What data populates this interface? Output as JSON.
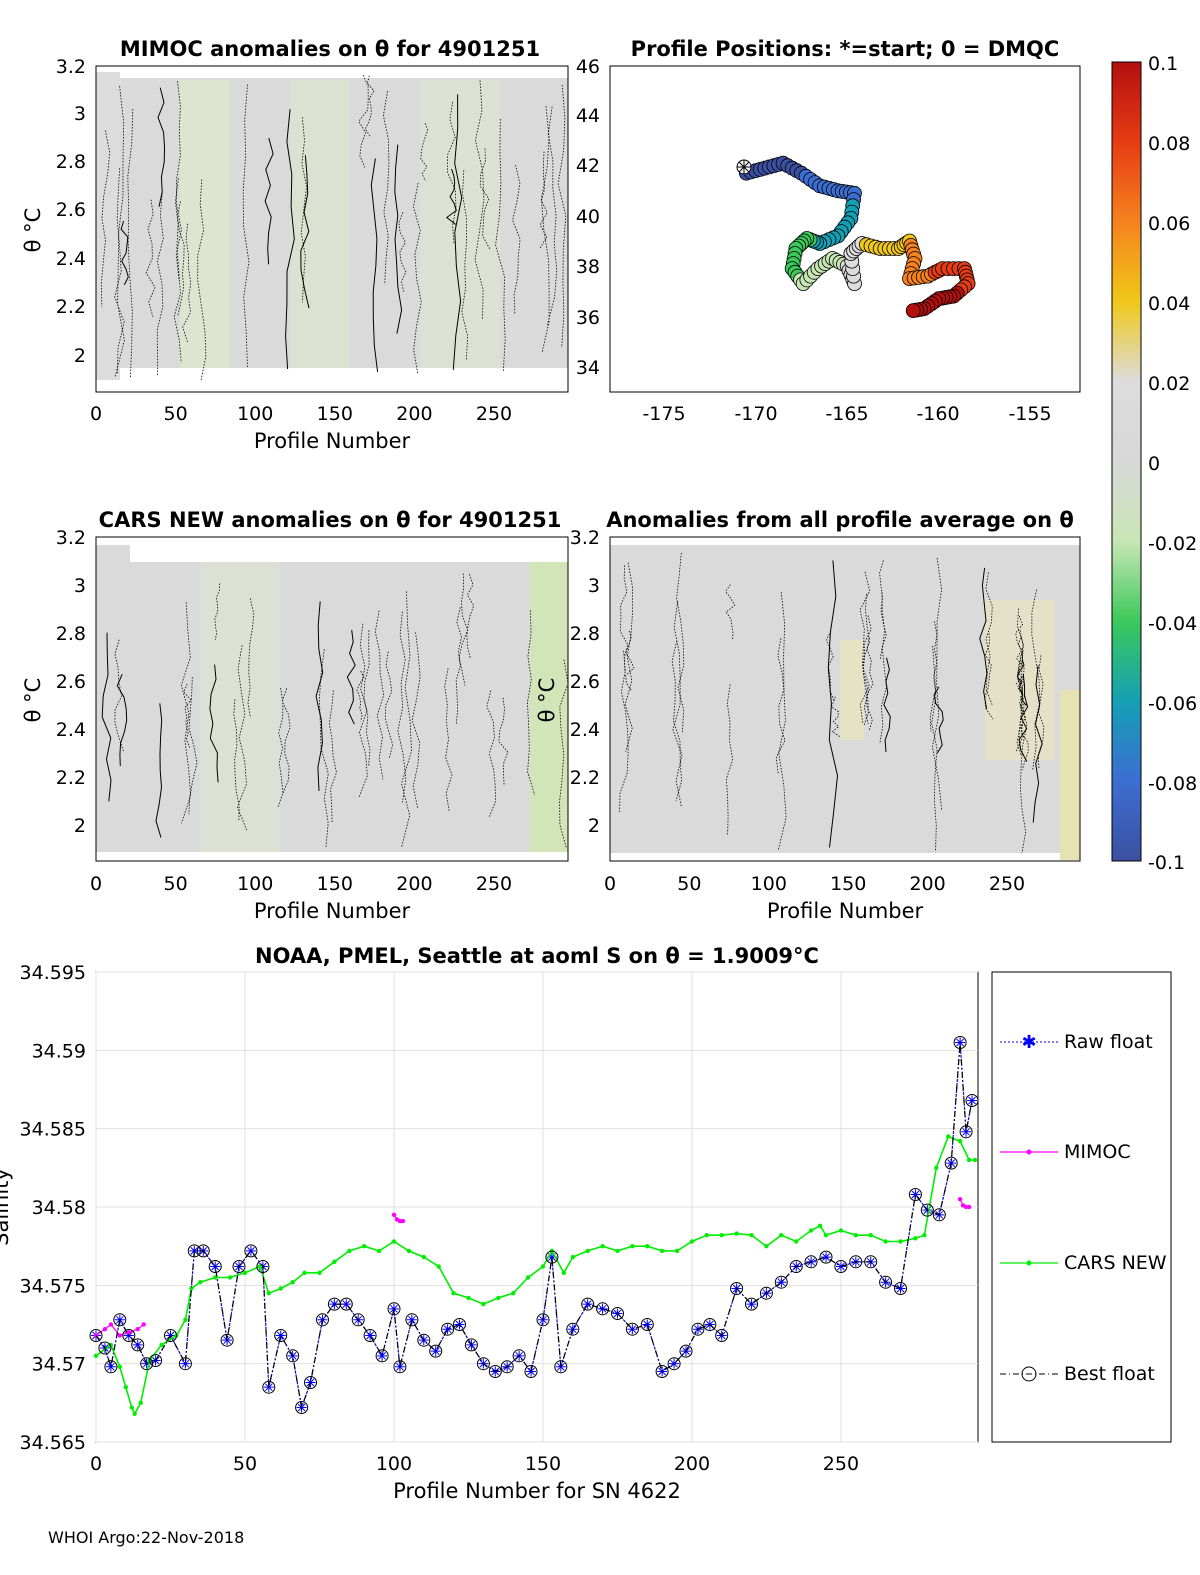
{
  "footer": "WHOI Argo:22-Nov-2018",
  "panels": {
    "mimoc": {
      "title": "MIMOC anomalies on θ  for 4901251",
      "xlabel": "Profile Number",
      "ylabel": "θ °C",
      "xticks": [
        "0",
        "50",
        "100",
        "150",
        "200",
        "250"
      ],
      "yticks": [
        "2",
        "2.2",
        "2.4",
        "2.6",
        "2.8",
        "3",
        "3.2"
      ]
    },
    "positions": {
      "title": "Profile Positions: *=start; 0 = DMQC",
      "xticks": [
        "-175",
        "-170",
        "-165",
        "-160",
        "-155"
      ],
      "yticks": [
        "34",
        "36",
        "38",
        "40",
        "42",
        "44",
        "46"
      ]
    },
    "cars": {
      "title": "CARS NEW anomalies on θ for 4901251",
      "xlabel": "Profile Number",
      "ylabel": "θ °C",
      "xticks": [
        "0",
        "50",
        "100",
        "150",
        "200",
        "250"
      ],
      "yticks": [
        "2",
        "2.2",
        "2.4",
        "2.6",
        "2.8",
        "3",
        "3.2"
      ]
    },
    "avg": {
      "title": "Anomalies from all profile average on θ",
      "xlabel": "Profile Number",
      "ylabel": "θ °C",
      "xticks": [
        "0",
        "50",
        "100",
        "150",
        "200",
        "250"
      ],
      "yticks": [
        "2",
        "2.2",
        "2.4",
        "2.6",
        "2.8",
        "3",
        "3.2"
      ]
    }
  },
  "colorbar": {
    "ticks": [
      "0.1",
      "0.08",
      "0.06",
      "0.04",
      "0.02",
      "0",
      "-0.02",
      "-0.04",
      "-0.06",
      "-0.08",
      "-0.1"
    ],
    "colors": [
      "#b40f0f",
      "#e63c14",
      "#f5821e",
      "#f0c819",
      "#dcdcdc",
      "#c8e6b4",
      "#3cc85a",
      "#14a0b4",
      "#3c6ed2",
      "#3c50a0"
    ]
  },
  "chart_data": {
    "type": "line",
    "title": "NOAA, PMEL, Seattle at aoml S on θ = 1.9009°C",
    "xlabel": "Profile Number for SN 4622",
    "ylabel": "Salinity",
    "xlim": [
      0,
      296
    ],
    "ylim": [
      34.565,
      34.595
    ],
    "xticks": [
      "0",
      "50",
      "100",
      "150",
      "200",
      "250"
    ],
    "yticks": [
      "34.565",
      "34.57",
      "34.575",
      "34.58",
      "34.585",
      "34.59",
      "34.595"
    ],
    "grid": true,
    "legend_position": "right",
    "series": [
      {
        "name": "Raw float",
        "color": "#0000ff",
        "x": [
          0,
          3,
          5,
          8,
          11,
          14,
          17,
          20,
          25,
          30,
          33,
          36,
          40,
          44,
          48,
          52,
          56,
          58,
          62,
          66,
          69,
          72,
          76,
          80,
          84,
          88,
          92,
          96,
          100,
          102,
          106,
          110,
          114,
          118,
          122,
          126,
          130,
          134,
          138,
          142,
          146,
          150,
          153,
          156,
          160,
          165,
          170,
          175,
          180,
          185,
          190,
          194,
          198,
          202,
          206,
          210,
          215,
          220,
          225,
          230,
          235,
          240,
          245,
          250,
          255,
          260,
          265,
          270,
          275,
          279,
          283,
          287,
          290,
          292,
          294
        ],
        "y": [
          34.5718,
          34.571,
          34.5698,
          34.5728,
          34.5718,
          34.5712,
          34.57,
          34.5702,
          34.5718,
          34.57,
          34.5772,
          34.5772,
          34.5762,
          34.5715,
          34.5762,
          34.5772,
          34.5762,
          34.5685,
          34.5718,
          34.5705,
          34.5672,
          34.5688,
          34.5728,
          34.5738,
          34.5738,
          34.5728,
          34.5718,
          34.5705,
          34.5735,
          34.5698,
          34.5728,
          34.5715,
          34.5708,
          34.5722,
          34.5725,
          34.5712,
          34.57,
          34.5695,
          34.5698,
          34.5705,
          34.5695,
          34.5728,
          34.5768,
          34.5698,
          34.5722,
          34.5738,
          34.5735,
          34.5732,
          34.5722,
          34.5725,
          34.5695,
          34.57,
          34.5708,
          34.5722,
          34.5725,
          34.5718,
          34.5748,
          34.5738,
          34.5745,
          34.5752,
          34.5762,
          34.5765,
          34.5768,
          34.5762,
          34.5765,
          34.5765,
          34.5752,
          34.5748,
          34.5808,
          34.5798,
          34.5795,
          34.5828,
          34.5905,
          34.5848,
          34.5868
        ]
      },
      {
        "name": "MIMOC",
        "color": "#ff00ff",
        "x": [
          0,
          3,
          5,
          8,
          11,
          14,
          16,
          100,
          101,
          102,
          103,
          290,
          291,
          292,
          293
        ],
        "y": [
          34.5718,
          34.5722,
          34.5725,
          34.5718,
          34.572,
          34.5722,
          34.5725,
          34.5795,
          34.5792,
          34.5791,
          34.5791,
          34.5805,
          34.5801,
          34.58,
          34.58
        ]
      },
      {
        "name": "CARS NEW",
        "color": "#00ee00",
        "x": [
          0,
          5,
          8,
          10,
          12,
          13,
          15,
          18,
          22,
          27,
          30,
          32,
          35,
          40,
          45,
          50,
          55,
          58,
          62,
          66,
          70,
          75,
          80,
          85,
          90,
          95,
          100,
          105,
          110,
          115,
          120,
          125,
          130,
          135,
          140,
          145,
          150,
          153,
          157,
          160,
          165,
          170,
          175,
          180,
          185,
          190,
          195,
          200,
          205,
          210,
          215,
          220,
          225,
          230,
          235,
          240,
          243,
          245,
          250,
          255,
          260,
          265,
          270,
          275,
          278,
          282,
          286,
          290,
          293,
          295
        ],
        "y": [
          34.5705,
          34.5712,
          34.5698,
          34.5685,
          34.5672,
          34.5668,
          34.5675,
          34.5702,
          34.5712,
          34.5718,
          34.5728,
          34.5748,
          34.5752,
          34.5755,
          34.5755,
          34.5758,
          34.5762,
          34.5745,
          34.5748,
          34.5752,
          34.5758,
          34.5758,
          34.5765,
          34.5772,
          34.5775,
          34.5772,
          34.5778,
          34.5772,
          34.5768,
          34.5762,
          34.5745,
          34.5742,
          34.5738,
          34.5742,
          34.5745,
          34.5755,
          34.5762,
          34.5772,
          34.5758,
          34.5768,
          34.5772,
          34.5775,
          34.5772,
          34.5775,
          34.5775,
          34.5772,
          34.5772,
          34.5778,
          34.5782,
          34.5782,
          34.5783,
          34.5782,
          34.5775,
          34.5782,
          34.5778,
          34.5785,
          34.5788,
          34.5782,
          34.5785,
          34.5782,
          34.5782,
          34.5778,
          34.5778,
          34.578,
          34.5782,
          34.5825,
          34.5845,
          34.5842,
          34.583,
          34.583
        ]
      },
      {
        "name": "Best float",
        "color": "#000000",
        "x": [
          0,
          3,
          5,
          8,
          11,
          14,
          17,
          20,
          25,
          30,
          33,
          36,
          40,
          44,
          48,
          52,
          56,
          58,
          62,
          66,
          69,
          72,
          76,
          80,
          84,
          88,
          92,
          96,
          100,
          102,
          106,
          110,
          114,
          118,
          122,
          126,
          130,
          134,
          138,
          142,
          146,
          150,
          153,
          156,
          160,
          165,
          170,
          175,
          180,
          185,
          190,
          194,
          198,
          202,
          206,
          210,
          215,
          220,
          225,
          230,
          235,
          240,
          245,
          250,
          255,
          260,
          265,
          270,
          275,
          279,
          283,
          287,
          290,
          292,
          294
        ],
        "y": [
          34.5718,
          34.571,
          34.5698,
          34.5728,
          34.5718,
          34.5712,
          34.57,
          34.5702,
          34.5718,
          34.57,
          34.5772,
          34.5772,
          34.5762,
          34.5715,
          34.5762,
          34.5772,
          34.5762,
          34.5685,
          34.5718,
          34.5705,
          34.5672,
          34.5688,
          34.5728,
          34.5738,
          34.5738,
          34.5728,
          34.5718,
          34.5705,
          34.5735,
          34.5698,
          34.5728,
          34.5715,
          34.5708,
          34.5722,
          34.5725,
          34.5712,
          34.57,
          34.5695,
          34.5698,
          34.5705,
          34.5695,
          34.5728,
          34.5768,
          34.5698,
          34.5722,
          34.5738,
          34.5735,
          34.5732,
          34.5722,
          34.5725,
          34.5695,
          34.57,
          34.5708,
          34.5722,
          34.5725,
          34.5718,
          34.5748,
          34.5738,
          34.5745,
          34.5752,
          34.5762,
          34.5765,
          34.5768,
          34.5762,
          34.5765,
          34.5765,
          34.5752,
          34.5748,
          34.5808,
          34.5798,
          34.5795,
          34.5828,
          34.5905,
          34.5848,
          34.5868
        ]
      }
    ]
  }
}
